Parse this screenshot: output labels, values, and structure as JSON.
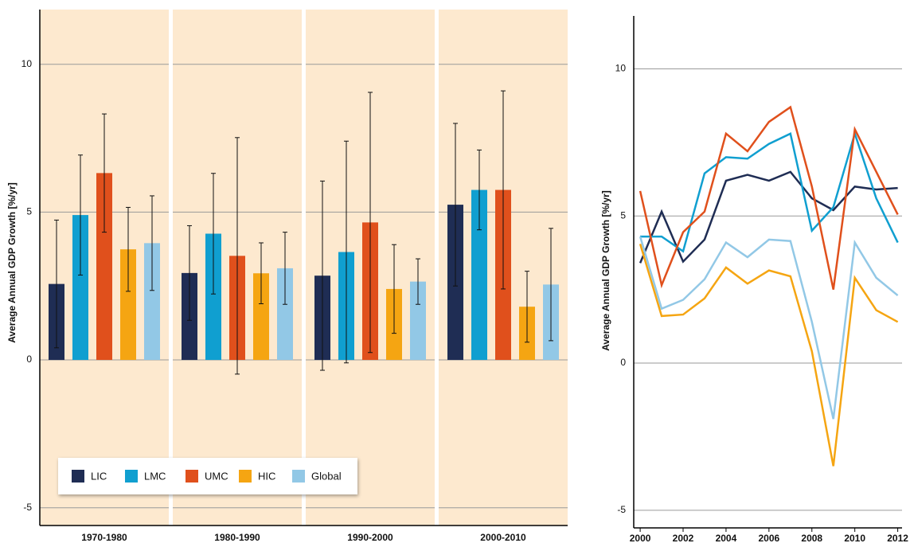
{
  "chart_data": [
    {
      "type": "bar",
      "y_label": "Average Annual GDP Growth [%/yr]",
      "categories": [
        "1970-1980",
        "1980-1990",
        "1990-2000",
        "2000-2010"
      ],
      "series": [
        {
          "name": "LIC",
          "color": "#1f2d54",
          "values": [
            2.57,
            2.94,
            2.85,
            5.25
          ],
          "errors": [
            2.16,
            1.6,
            3.2,
            2.75
          ]
        },
        {
          "name": "LMC",
          "color": "#109fd0",
          "values": [
            4.9,
            4.27,
            3.65,
            5.75
          ],
          "errors": [
            2.03,
            2.04,
            3.75,
            1.35
          ]
        },
        {
          "name": "UMC",
          "color": "#e0501c",
          "values": [
            6.32,
            3.52,
            4.65,
            5.75
          ],
          "errors": [
            2.0,
            4.0,
            4.4,
            3.35
          ]
        },
        {
          "name": "HIC",
          "color": "#f5a512",
          "values": [
            3.74,
            2.93,
            2.4,
            1.8
          ],
          "errors": [
            1.42,
            1.03,
            1.5,
            1.2
          ]
        },
        {
          "name": "Global",
          "color": "#92c8e6",
          "values": [
            3.95,
            3.1,
            2.65,
            2.55
          ],
          "errors": [
            1.6,
            1.22,
            0.77,
            1.9
          ]
        }
      ],
      "ylim": [
        -5.6,
        11.85
      ],
      "yticks": [
        -5,
        0,
        5,
        10
      ],
      "grid": true,
      "legend": "lower left"
    },
    {
      "type": "line",
      "y_label": "Average Annual GDP Growth [%/yr]",
      "x": [
        2000,
        2001,
        2002,
        2003,
        2004,
        2005,
        2006,
        2007,
        2008,
        2009,
        2010,
        2011,
        2012
      ],
      "series": [
        {
          "color": "#1f2d54",
          "values": [
            3.4,
            5.15,
            3.45,
            4.2,
            6.2,
            6.4,
            6.2,
            6.5,
            5.6,
            5.2,
            6.0,
            5.9,
            5.95
          ]
        },
        {
          "color": "#109fd0",
          "values": [
            4.3,
            4.3,
            3.8,
            6.45,
            7.0,
            6.95,
            7.45,
            7.8,
            4.5,
            5.3,
            7.8,
            5.6,
            4.1
          ]
        },
        {
          "color": "#e0501c",
          "values": [
            5.85,
            2.65,
            4.45,
            5.15,
            7.8,
            7.2,
            8.2,
            8.7,
            6.0,
            2.5,
            7.95,
            6.5,
            5.05
          ]
        },
        {
          "color": "#f5a512",
          "values": [
            4.05,
            1.6,
            1.65,
            2.2,
            3.25,
            2.7,
            3.15,
            2.95,
            0.4,
            -3.5,
            2.9,
            1.8,
            1.4
          ]
        },
        {
          "color": "#92c8e6",
          "values": [
            4.3,
            1.85,
            2.15,
            2.85,
            4.1,
            3.6,
            4.2,
            4.15,
            1.4,
            -1.9,
            4.1,
            2.9,
            2.3
          ]
        }
      ],
      "xlim": [
        1999.7,
        2012.2
      ],
      "xticks": [
        2000,
        2002,
        2004,
        2006,
        2008,
        2010,
        2012
      ],
      "ylim": [
        -5.6,
        11.8
      ],
      "yticks": [
        -5,
        0,
        5,
        10
      ],
      "grid": true
    }
  ]
}
